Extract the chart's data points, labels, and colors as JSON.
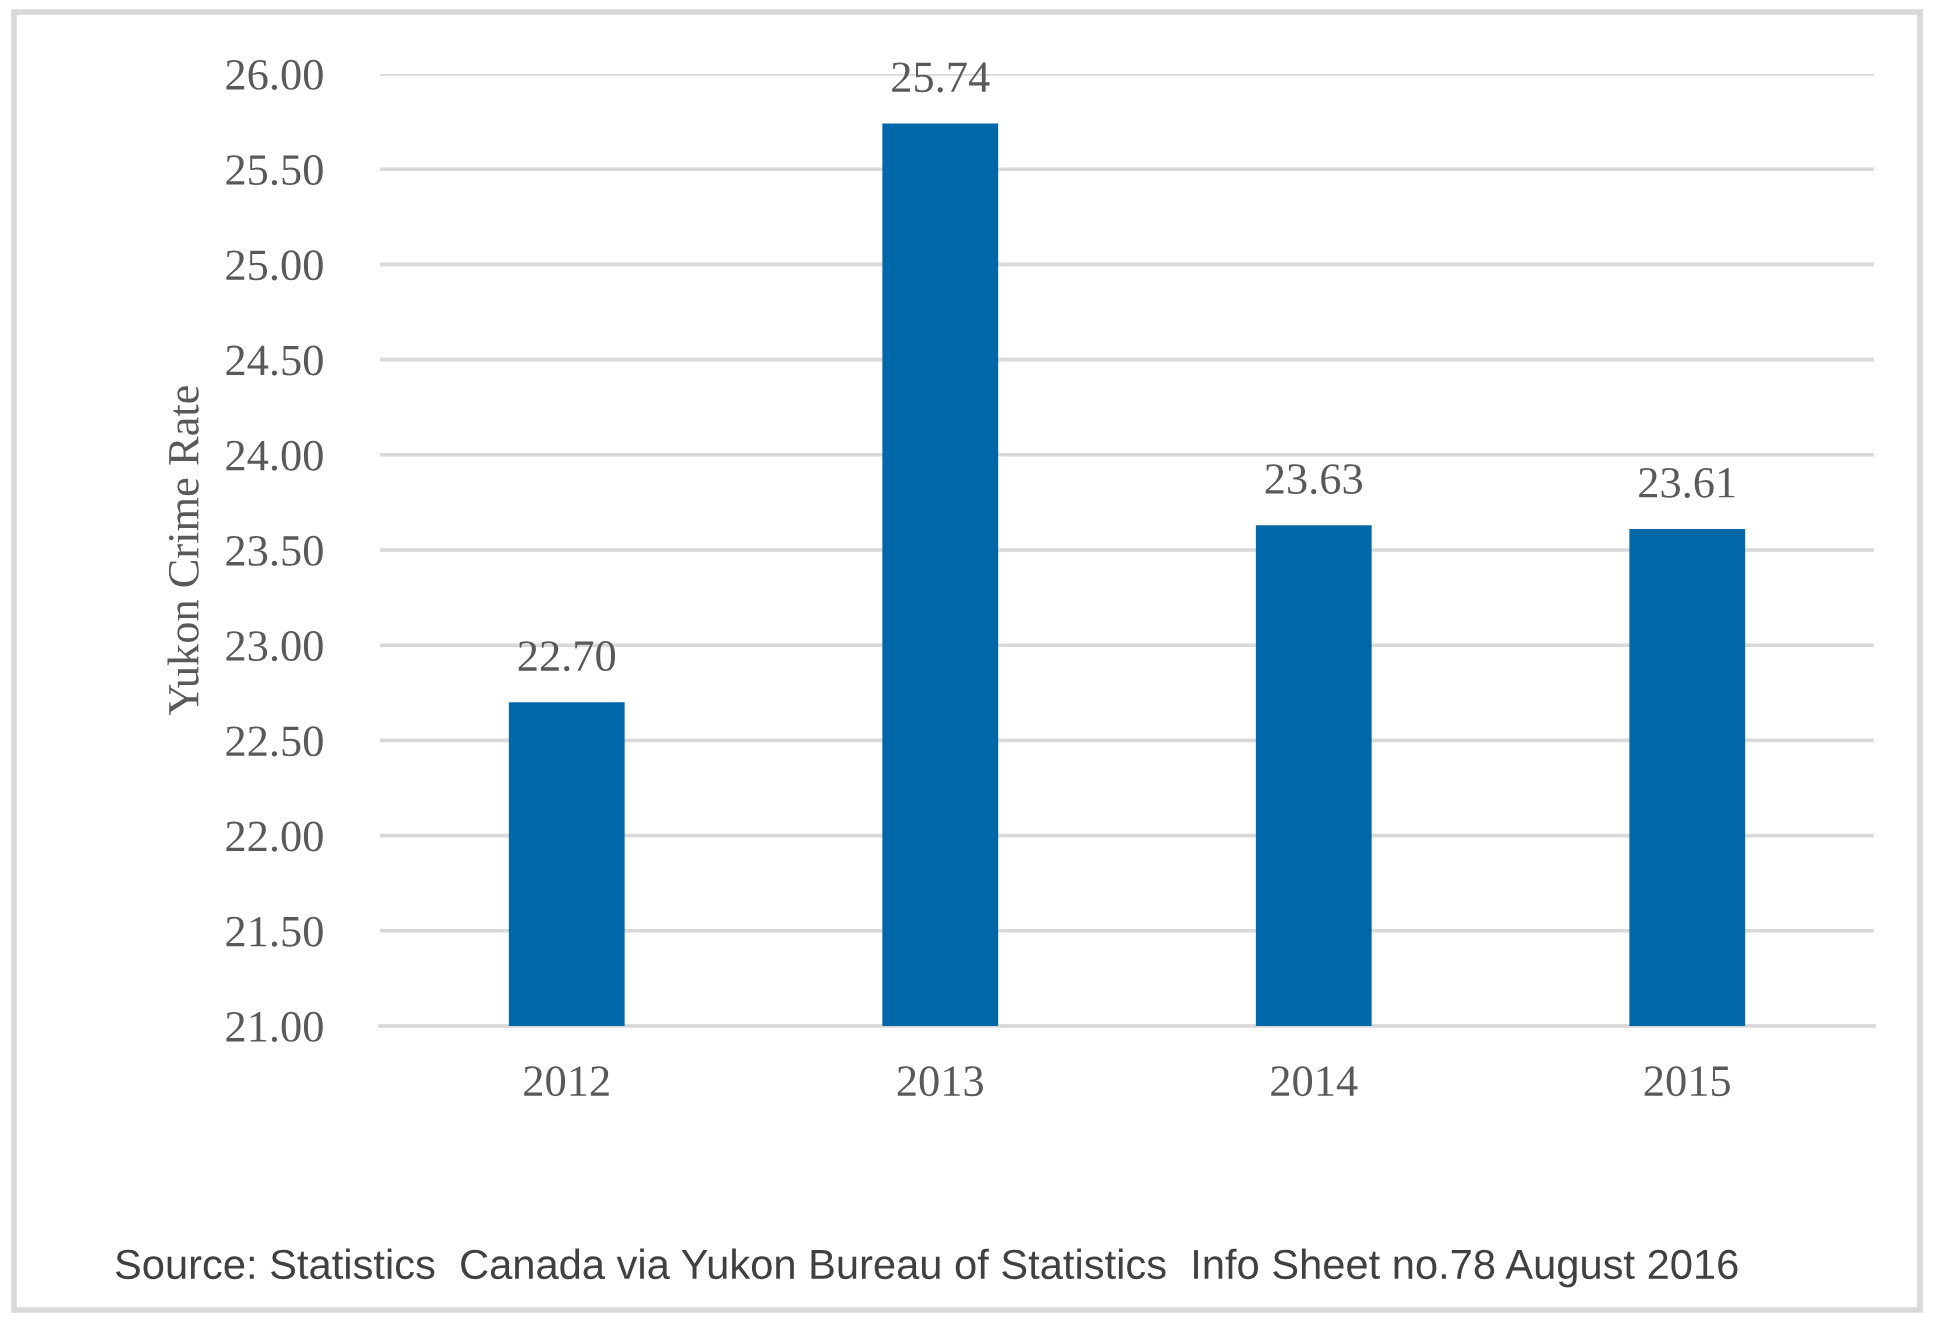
{
  "chart_data": {
    "type": "bar",
    "ylabel": "Yukon Crime Rate",
    "categories": [
      "2012",
      "2013",
      "2014",
      "2015"
    ],
    "values": [
      22.7,
      25.74,
      23.63,
      23.61
    ],
    "color": "#0068a8",
    "value_labels": [
      "22.70",
      "25.74",
      "23.63",
      "23.61"
    ],
    "ylim": [
      21,
      26
    ],
    "yticks": [
      {
        "value": 21,
        "label": "21.00"
      },
      {
        "value": 21.5,
        "label": "21.50"
      },
      {
        "value": 22,
        "label": "22.00"
      },
      {
        "value": 22.5,
        "label": "22.50"
      },
      {
        "value": 23,
        "label": "23.00"
      },
      {
        "value": 23.5,
        "label": "23.50"
      },
      {
        "value": 24,
        "label": "24.00"
      },
      {
        "value": 24.5,
        "label": "24.50"
      },
      {
        "value": 25,
        "label": "25.00"
      },
      {
        "value": 25.5,
        "label": "25.50"
      },
      {
        "value": 26,
        "label": "26.00"
      }
    ],
    "grid": "y",
    "legend": false,
    "annotations": [
      "Source: Statistics  Canada via Yukon Bureau of Statistics  Info Sheet no.78 August 2016"
    ]
  }
}
